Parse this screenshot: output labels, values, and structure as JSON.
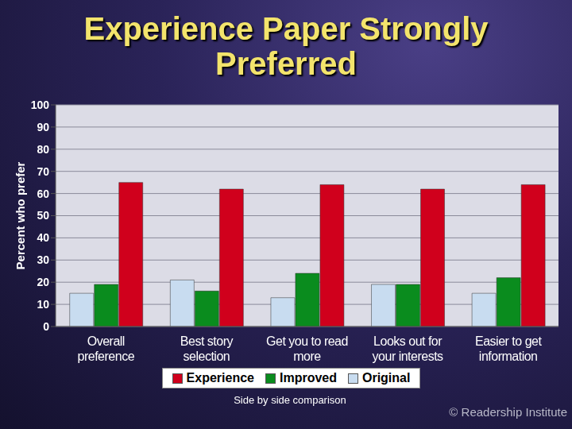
{
  "chart_data": {
    "type": "bar",
    "title": "Experience Paper Strongly Preferred",
    "y_label": "Percent who prefer",
    "categories": [
      "Overall preference",
      "Best story selection",
      "Get you to read more",
      "Looks out for your interests",
      "Easier to get information"
    ],
    "series": [
      {
        "name": "Original",
        "color": "#c8dcf0",
        "values": [
          15,
          21,
          13,
          19,
          15
        ]
      },
      {
        "name": "Improved",
        "color": "#0a8c1e",
        "values": [
          19,
          16,
          24,
          19,
          22
        ]
      },
      {
        "name": "Experience",
        "color": "#d0001c",
        "values": [
          65,
          62,
          64,
          62,
          64
        ]
      }
    ],
    "ylim": [
      0,
      100
    ],
    "yticks": [
      0,
      10,
      20,
      30,
      40,
      50,
      60,
      70,
      80,
      90,
      100
    ],
    "grid": true,
    "legend": "bottom",
    "annotations": [
      "Side by side comparison",
      "© Readership Institute"
    ]
  }
}
